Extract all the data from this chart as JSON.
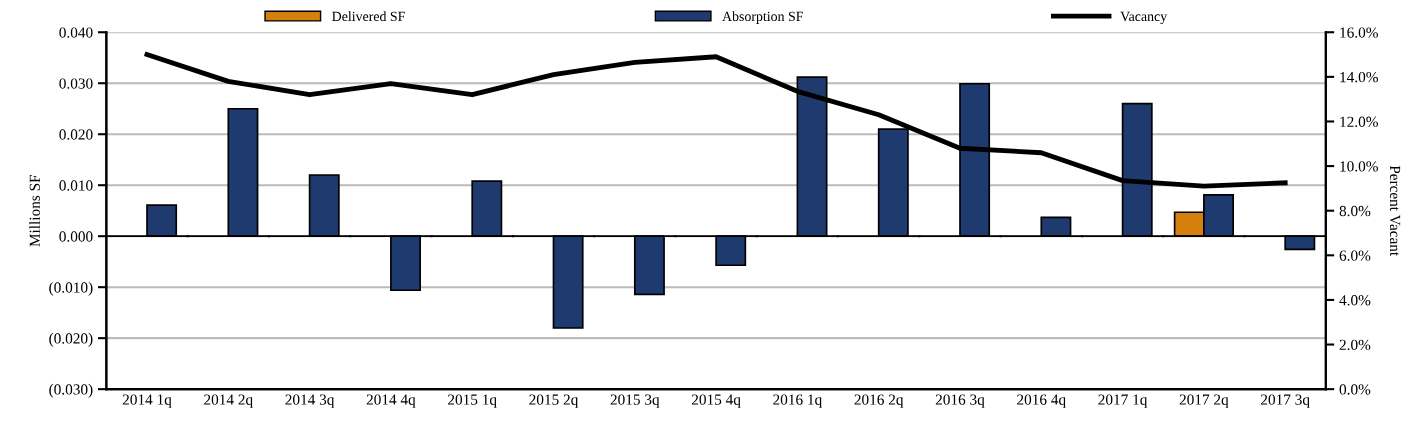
{
  "chart_data": {
    "type": "bar",
    "ylabel": "Millions SF",
    "y2label": "Percent Vacant",
    "categories": [
      "2014 1q",
      "2014 2q",
      "2014 3q",
      "2014 4q",
      "2015 1q",
      "2015 2q",
      "2015 3q",
      "2015 4q",
      "2016 1q",
      "2016 2q",
      "2016 3q",
      "2016 4q",
      "2017 1q",
      "2017 2q",
      "2017 3q"
    ],
    "series": [
      {
        "name": "Delivered SF",
        "color": "#d4800c",
        "values": [
          null,
          null,
          null,
          null,
          null,
          null,
          null,
          null,
          null,
          null,
          null,
          null,
          null,
          0.0047,
          null
        ]
      },
      {
        "name": "Absorption SF",
        "color": "#1f3a6e",
        "values": [
          0.0061,
          0.025,
          0.012,
          -0.0106,
          0.0108,
          -0.018,
          -0.0114,
          -0.0057,
          0.0312,
          0.021,
          0.0299,
          0.0037,
          0.026,
          0.0081,
          -0.0026
        ]
      },
      {
        "name": "Vacancy",
        "type": "line",
        "axis": "y2",
        "color": "#000000",
        "values": [
          15.0,
          13.8,
          13.2,
          13.7,
          13.2,
          14.1,
          14.65,
          14.9,
          13.35,
          12.3,
          10.8,
          10.6,
          9.35,
          9.1,
          9.25
        ]
      }
    ],
    "ylim": [
      -0.03,
      0.04
    ],
    "yticks": [
      {
        "value": -0.03,
        "label": "(0.030)"
      },
      {
        "value": -0.02,
        "label": "(0.020)"
      },
      {
        "value": -0.01,
        "label": "(0.010)"
      },
      {
        "value": 0,
        "label": "0.000"
      },
      {
        "value": 0.01,
        "label": "0.010"
      },
      {
        "value": 0.02,
        "label": "0.020"
      },
      {
        "value": 0.03,
        "label": "0.030"
      },
      {
        "value": 0.04,
        "label": "0.040"
      }
    ],
    "y2lim": [
      0,
      16
    ],
    "y2ticks": [
      {
        "value": 0,
        "label": "0.0%"
      },
      {
        "value": 2,
        "label": "2.0%"
      },
      {
        "value": 4,
        "label": "4.0%"
      },
      {
        "value": 6,
        "label": "6.0%"
      },
      {
        "value": 8,
        "label": "8.0%"
      },
      {
        "value": 10,
        "label": "10.0%"
      },
      {
        "value": 12,
        "label": "12.0%"
      },
      {
        "value": 14,
        "label": "14.0%"
      },
      {
        "value": 16,
        "label": "16.0%"
      }
    ],
    "grid": "y",
    "legend": "top",
    "marker": "none",
    "line_style": "solid"
  }
}
